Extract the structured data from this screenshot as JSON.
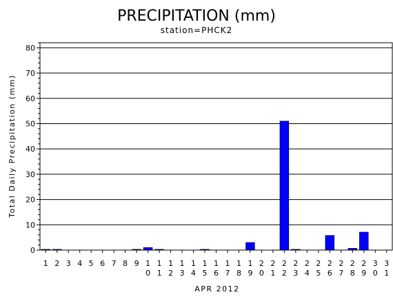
{
  "chart_data": {
    "type": "bar",
    "title": "PRECIPITATION (mm)",
    "subtitle": "station=PHCK2",
    "xlabel": "APR 2012",
    "ylabel": "Total Daily Precipitation (mm)",
    "ylim": [
      0,
      82
    ],
    "yticks": [
      0,
      10,
      20,
      30,
      40,
      50,
      60,
      70,
      80
    ],
    "grid": true,
    "bar_color": "#0000ff",
    "categories": [
      "1",
      "2",
      "3",
      "4",
      "5",
      "6",
      "7",
      "8",
      "9",
      "10",
      "11",
      "12",
      "13",
      "14",
      "15",
      "16",
      "17",
      "18",
      "19",
      "20",
      "21",
      "22",
      "23",
      "24",
      "25",
      "26",
      "27",
      "28",
      "29",
      "30",
      "31"
    ],
    "values": [
      0.3,
      0.3,
      0,
      0,
      0,
      0,
      0,
      0,
      0.3,
      1.0,
      0.3,
      0,
      0,
      0,
      0.3,
      0,
      0,
      0,
      3.0,
      0,
      0,
      51.0,
      0.3,
      0,
      0,
      5.8,
      0,
      0.7,
      7.1,
      0,
      0
    ]
  }
}
